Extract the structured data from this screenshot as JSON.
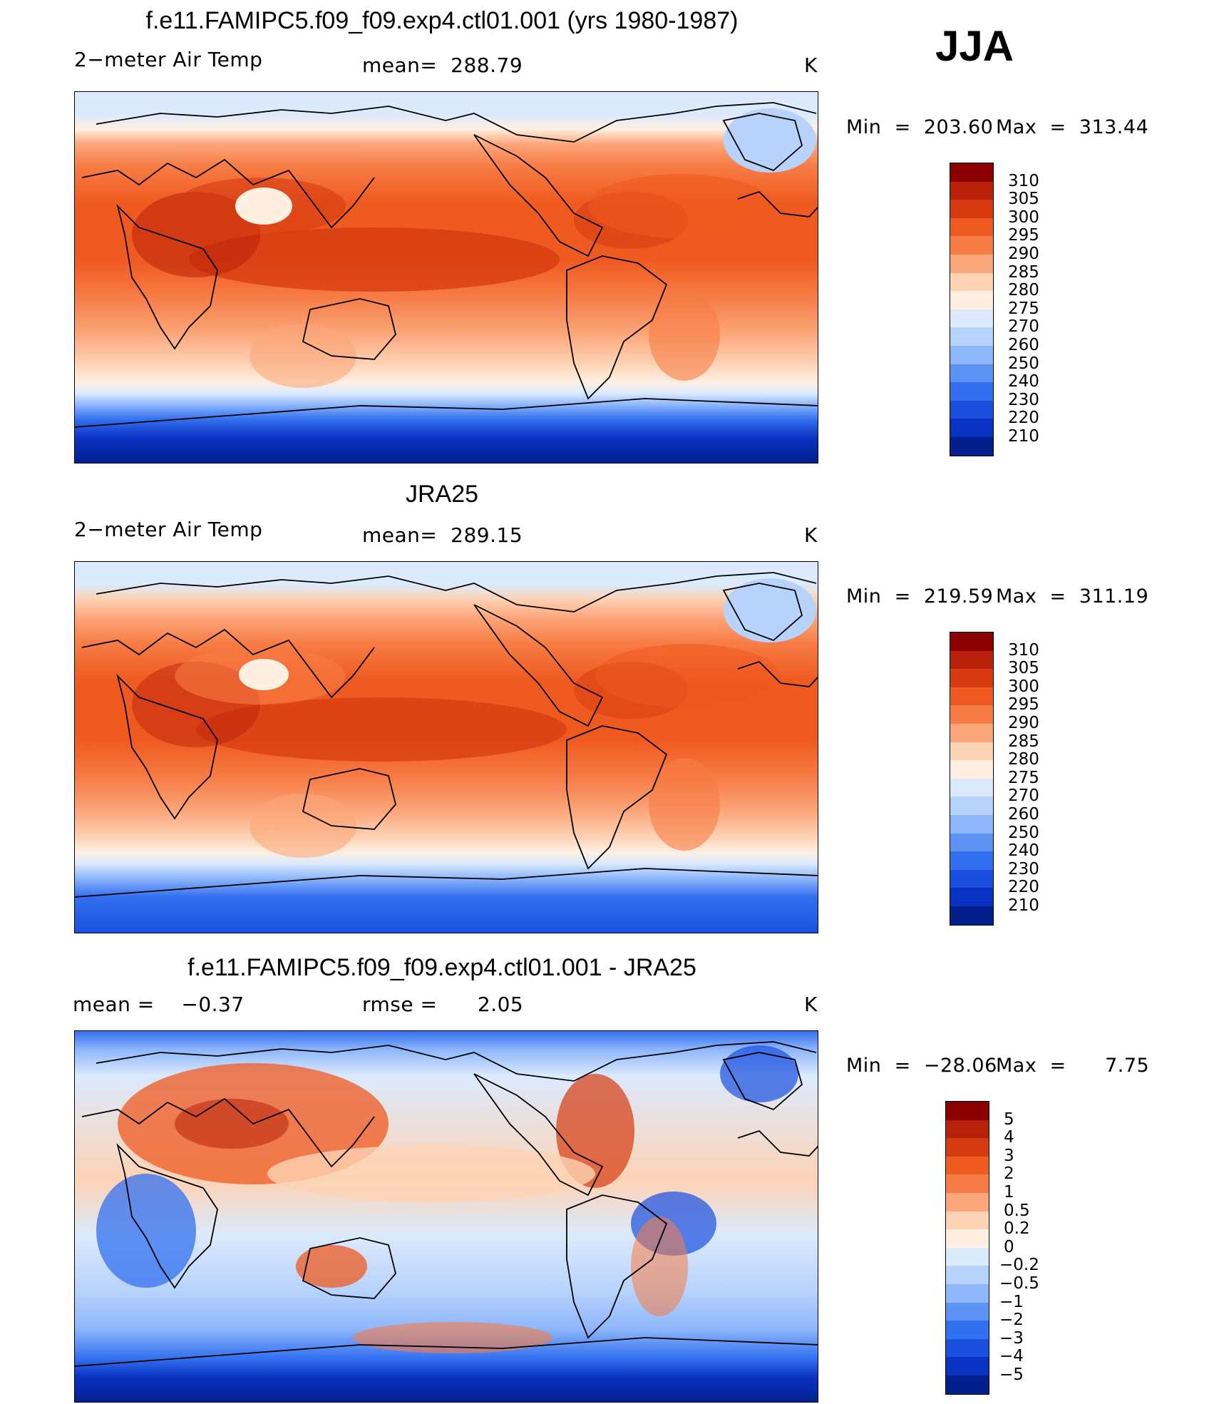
{
  "season": "JJA",
  "panels": [
    {
      "title": "f.e11.FAMIPC5.f09_f09.exp4.ctl01.001 (yrs 1980-1987)",
      "left_label": "2−meter Air Temp",
      "center_label": "mean=  288.79",
      "units": "K",
      "min_label": "Min  =  203.60",
      "max_label": "Max  =  313.44",
      "colorbar": {
        "ticks": [
          "310",
          "305",
          "300",
          "295",
          "290",
          "285",
          "280",
          "275",
          "270",
          "260",
          "250",
          "240",
          "230",
          "220",
          "210"
        ],
        "colors": [
          "#8b0000",
          "#b8200a",
          "#d63a10",
          "#ef5a20",
          "#f77c45",
          "#fba67a",
          "#fdd3b5",
          "#fff0e2",
          "#dbeafd",
          "#b7d2fb",
          "#8eb6fb",
          "#5e93f6",
          "#3370ef",
          "#1a4fdf",
          "#0a32c2",
          "#031f8c"
        ]
      }
    },
    {
      "title": "JRA25",
      "left_label": "2−meter Air Temp",
      "center_label": "mean=  289.15",
      "units": "K",
      "min_label": "Min  =  219.59",
      "max_label": "Max  =  311.19",
      "colorbar": {
        "ticks": [
          "310",
          "305",
          "300",
          "295",
          "290",
          "285",
          "280",
          "275",
          "270",
          "260",
          "250",
          "240",
          "230",
          "220",
          "210"
        ],
        "colors": [
          "#8b0000",
          "#b8200a",
          "#d63a10",
          "#ef5a20",
          "#f77c45",
          "#fba67a",
          "#fdd3b5",
          "#fff0e2",
          "#dbeafd",
          "#b7d2fb",
          "#8eb6fb",
          "#5e93f6",
          "#3370ef",
          "#1a4fdf",
          "#0a32c2",
          "#031f8c"
        ]
      }
    },
    {
      "title": "f.e11.FAMIPC5.f09_f09.exp4.ctl01.001 - JRA25",
      "left_label": "mean =    −0.37",
      "center_label": "rmse =      2.05",
      "units": "K",
      "min_label": "Min  =  −28.06",
      "max_label": "Max  =      7.75",
      "colorbar": {
        "ticks": [
          "5",
          "4",
          "3",
          "2",
          "1",
          "0.5",
          "0.2",
          "0",
          "−0.2",
          "−0.5",
          "−1",
          "−2",
          "−3",
          "−4",
          "−5"
        ],
        "colors": [
          "#8b0000",
          "#b8200a",
          "#d63a10",
          "#ef5a20",
          "#f77c45",
          "#fba67a",
          "#fdd3b5",
          "#fff0e2",
          "#dbeafd",
          "#b7d2fb",
          "#8eb6fb",
          "#5e93f6",
          "#3370ef",
          "#1a4fdf",
          "#0a32c2",
          "#031f8c"
        ]
      }
    }
  ]
}
